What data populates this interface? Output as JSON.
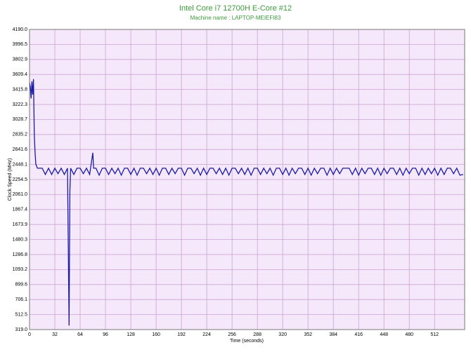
{
  "chart_data": {
    "type": "line",
    "title": "Intel Core i7 12700H E-Core #12",
    "subtitle": "Machine name : LAPTOP-MEIEFI83",
    "x_label": "Time (seconds)",
    "y_label": "Clock Speed (MHz)",
    "color": "#1a1aa8",
    "grid": true,
    "xlim": [
      0,
      550
    ],
    "ylim": [
      319,
      4190
    ],
    "xticks": [
      0,
      32,
      64,
      96,
      128,
      160,
      192,
      224,
      256,
      288,
      320,
      352,
      384,
      416,
      448,
      480,
      512
    ],
    "yticks": [
      {
        "value": 319,
        "label": "319.0"
      },
      512.5,
      706.1,
      899.6,
      1093.2,
      1286.8,
      1480.3,
      1673.9,
      1867.4,
      {
        "value": 2061,
        "label": "2061.0"
      },
      2254.5,
      2448.1,
      2641.6,
      2835.2,
      3028.7,
      3222.3,
      3415.8,
      3609.4,
      3802.9,
      3996.5,
      {
        "value": 4190,
        "label": "4190.0"
      }
    ],
    "x": [
      0,
      1,
      2,
      3,
      4,
      5,
      6,
      7,
      8,
      10,
      12,
      16,
      20,
      24,
      28,
      32,
      36,
      40,
      44,
      48,
      50,
      51,
      52,
      56,
      60,
      64,
      68,
      72,
      76,
      80,
      81,
      84,
      88,
      92,
      96,
      100,
      104,
      108,
      112,
      116,
      120,
      124,
      128,
      132,
      136,
      140,
      144,
      148,
      152,
      156,
      160,
      164,
      168,
      172,
      176,
      180,
      184,
      188,
      192,
      196,
      200,
      204,
      208,
      212,
      216,
      220,
      224,
      228,
      232,
      236,
      240,
      244,
      248,
      252,
      256,
      260,
      264,
      268,
      272,
      276,
      280,
      284,
      288,
      292,
      296,
      300,
      304,
      308,
      312,
      316,
      320,
      324,
      328,
      332,
      336,
      340,
      344,
      348,
      352,
      356,
      360,
      364,
      368,
      372,
      376,
      380,
      384,
      388,
      392,
      396,
      400,
      404,
      408,
      412,
      416,
      420,
      424,
      428,
      432,
      436,
      440,
      444,
      448,
      452,
      456,
      460,
      464,
      468,
      472,
      476,
      480,
      484,
      488,
      492,
      496,
      500,
      504,
      508,
      512,
      516,
      520,
      524,
      528,
      532,
      536,
      540,
      544,
      548
    ],
    "values": [
      3500,
      3450,
      3300,
      3520,
      3350,
      3550,
      2850,
      2600,
      2450,
      2400,
      2400,
      2400,
      2320,
      2400,
      2320,
      2400,
      2330,
      2400,
      2320,
      2400,
      370,
      2100,
      2400,
      2320,
      2400,
      2400,
      2330,
      2400,
      2320,
      2600,
      2400,
      2400,
      2310,
      2400,
      2400,
      2320,
      2400,
      2330,
      2400,
      2310,
      2400,
      2400,
      2320,
      2400,
      2310,
      2400,
      2400,
      2330,
      2400,
      2320,
      2400,
      2310,
      2400,
      2400,
      2320,
      2400,
      2330,
      2400,
      2400,
      2310,
      2400,
      2400,
      2330,
      2400,
      2310,
      2400,
      2320,
      2400,
      2400,
      2330,
      2400,
      2320,
      2400,
      2310,
      2400,
      2400,
      2330,
      2400,
      2320,
      2400,
      2310,
      2400,
      2400,
      2320,
      2400,
      2330,
      2400,
      2310,
      2400,
      2400,
      2320,
      2400,
      2310,
      2400,
      2330,
      2400,
      2400,
      2320,
      2400,
      2310,
      2400,
      2330,
      2400,
      2400,
      2310,
      2400,
      2320,
      2400,
      2330,
      2400,
      2400,
      2400,
      2320,
      2400,
      2310,
      2400,
      2330,
      2400,
      2400,
      2320,
      2400,
      2310,
      2400,
      2330,
      2400,
      2400,
      2320,
      2400,
      2310,
      2400,
      2330,
      2400,
      2400,
      2310,
      2400,
      2320,
      2400,
      2330,
      2400,
      2310,
      2400,
      2320,
      2400,
      2400,
      2330,
      2400,
      2310,
      2320
    ]
  }
}
